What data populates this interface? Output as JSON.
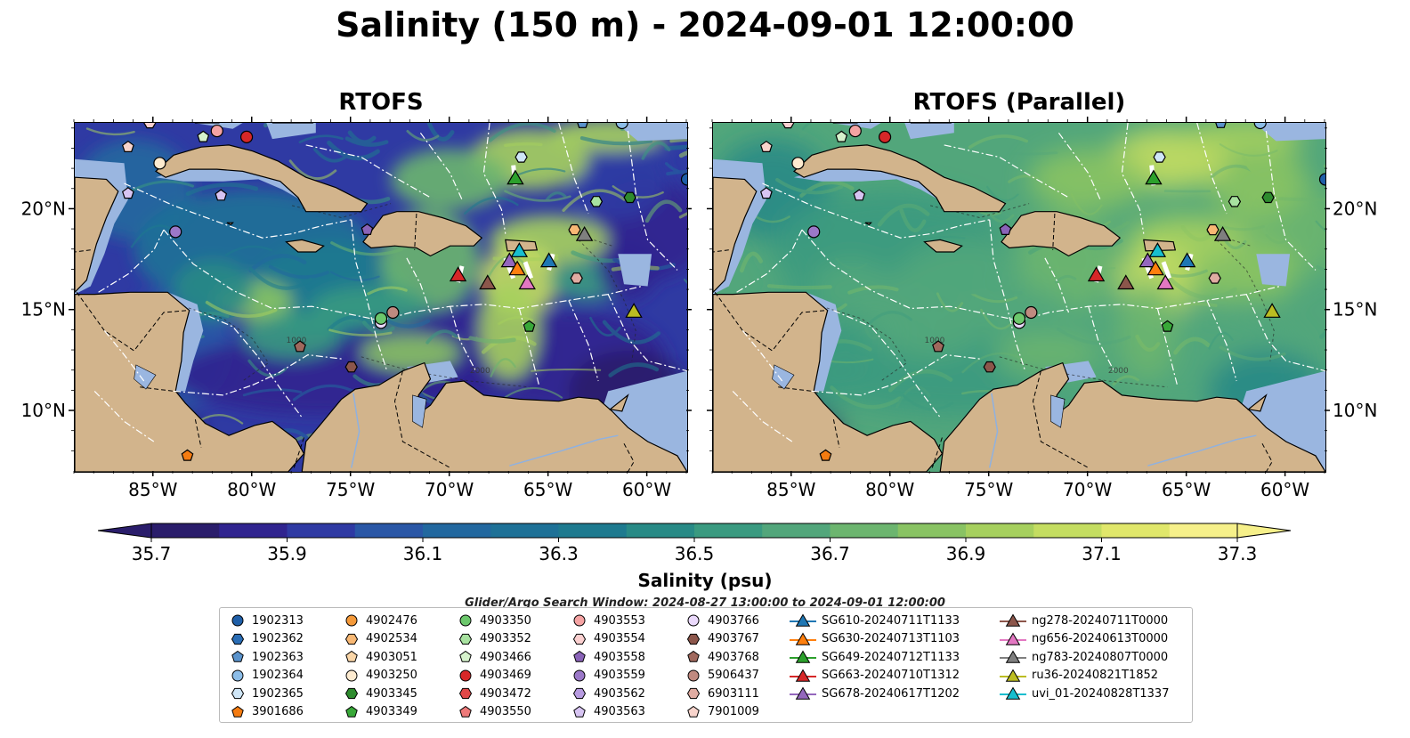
{
  "title": "Salinity (150 m) - 2024-09-01 12:00:00",
  "panels": [
    {
      "title": "RTOFS",
      "variant": "rtofs"
    },
    {
      "title": "RTOFS (Parallel)",
      "variant": "parallel"
    }
  ],
  "axes": {
    "lon_ticks": [
      "85°W",
      "80°W",
      "75°W",
      "70°W",
      "65°W",
      "60°W"
    ],
    "lat_ticks": [
      "20°N",
      "15°N",
      "10°N"
    ],
    "lon_range": [
      -89,
      -58
    ],
    "lat_range": [
      7,
      24.3
    ]
  },
  "contour_labels": [
    "1000",
    "1000",
    "2000"
  ],
  "colorbar": {
    "label": "Salinity (psu)",
    "ticks": [
      "35.7",
      "35.9",
      "36.1",
      "36.3",
      "36.5",
      "36.7",
      "36.9",
      "37.1",
      "37.3"
    ],
    "min": 35.7,
    "max": 37.3,
    "extend": "both",
    "colors": [
      "#2a1d6b",
      "#30248f",
      "#2f3aa3",
      "#2a57a6",
      "#22689f",
      "#1e7197",
      "#1e7a8f",
      "#288a86",
      "#3a9a80",
      "#52a67b",
      "#6cb56f",
      "#89c363",
      "#a6d05e",
      "#c4dd61",
      "#e0e76b",
      "#f6f08a"
    ],
    "land_color": "#d2b48c",
    "shelf_color": "#9ab6e0"
  },
  "search_window": "Glider/Argo Search Window: 2024-08-27 13:00:00 to 2024-09-01 12:00:00",
  "legend": {
    "columns": [
      [
        {
          "label": "1902313",
          "marker": "circle",
          "color": "#1f5fa8"
        },
        {
          "label": "1902362",
          "marker": "hexagon",
          "color": "#2a6db5"
        },
        {
          "label": "1902363",
          "marker": "pentagon",
          "color": "#5a93cc"
        },
        {
          "label": "1902364",
          "marker": "circle",
          "color": "#8cbde8"
        },
        {
          "label": "1902365",
          "marker": "hexagon",
          "color": "#cfe6f7"
        },
        {
          "label": "3901686",
          "marker": "pentagon",
          "color": "#f57c11"
        }
      ],
      [
        {
          "label": "4902476",
          "marker": "circle",
          "color": "#f59a3a"
        },
        {
          "label": "4902534",
          "marker": "hexagon",
          "color": "#f8b874"
        },
        {
          "label": "4903051",
          "marker": "pentagon",
          "color": "#fad6a8"
        },
        {
          "label": "4903250",
          "marker": "circle",
          "color": "#fdebd0"
        },
        {
          "label": "4903345",
          "marker": "hexagon",
          "color": "#2e8b2e"
        },
        {
          "label": "4903349",
          "marker": "pentagon",
          "color": "#38a838"
        }
      ],
      [
        {
          "label": "4903350",
          "marker": "circle",
          "color": "#6cc86c"
        },
        {
          "label": "4903352",
          "marker": "hexagon",
          "color": "#a8e2a0"
        },
        {
          "label": "4903466",
          "marker": "pentagon",
          "color": "#d6f2cc"
        },
        {
          "label": "4903469",
          "marker": "circle",
          "color": "#d62728"
        },
        {
          "label": "4903472",
          "marker": "hexagon",
          "color": "#e04848"
        },
        {
          "label": "4903550",
          "marker": "pentagon",
          "color": "#ee7a7a"
        }
      ],
      [
        {
          "label": "4903553",
          "marker": "circle",
          "color": "#f5a3a3"
        },
        {
          "label": "4903554",
          "marker": "hexagon",
          "color": "#fbd0d0"
        },
        {
          "label": "4903558",
          "marker": "pentagon",
          "color": "#8a63b8"
        },
        {
          "label": "4903559",
          "marker": "circle",
          "color": "#9b78c8"
        },
        {
          "label": "4903562",
          "marker": "hexagon",
          "color": "#b79be0"
        },
        {
          "label": "4903563",
          "marker": "pentagon",
          "color": "#d7c4f2"
        }
      ],
      [
        {
          "label": "4903766",
          "marker": "circle",
          "color": "#ead9fb"
        },
        {
          "label": "4903767",
          "marker": "hexagon",
          "color": "#8c564b"
        },
        {
          "label": "4903768",
          "marker": "pentagon",
          "color": "#a0685d"
        },
        {
          "label": "5906437",
          "marker": "circle",
          "color": "#c08a80"
        },
        {
          "label": "6903111",
          "marker": "hexagon",
          "color": "#e0aca2"
        },
        {
          "label": "7901009",
          "marker": "pentagon",
          "color": "#f8d4cc"
        }
      ],
      [
        {
          "label": "SG610-20240711T1133",
          "marker": "triangle",
          "color": "#1f77b4"
        },
        {
          "label": "SG630-20240713T1103",
          "marker": "triangle",
          "color": "#ff7f0e"
        },
        {
          "label": "SG649-20240712T1133",
          "marker": "triangle",
          "color": "#2ca02c"
        },
        {
          "label": "SG663-20240710T1312",
          "marker": "triangle",
          "color": "#d62728"
        },
        {
          "label": "SG678-20240617T1202",
          "marker": "triangle",
          "color": "#9467bd"
        }
      ],
      [
        {
          "label": "ng278-20240711T0000",
          "marker": "triangle",
          "color": "#8c564b"
        },
        {
          "label": "ng656-20240613T0000",
          "marker": "triangle",
          "color": "#e377c2"
        },
        {
          "label": "ng783-20240807T0000",
          "marker": "triangle",
          "color": "#7f7f7f"
        },
        {
          "label": "ru36-20240821T1852",
          "marker": "triangle",
          "color": "#bcbd22"
        },
        {
          "label": "uvi_01-20240828T1337",
          "marker": "triangle",
          "color": "#17becf"
        }
      ]
    ]
  },
  "observations": [
    {
      "id": "1902363",
      "lon": -63.3,
      "lat": 24.3
    },
    {
      "id": "1902364",
      "lon": -61.3,
      "lat": 24.3
    },
    {
      "id": "1902313",
      "lon": -58.0,
      "lat": 21.5
    },
    {
      "id": "4903554",
      "lon": -85.2,
      "lat": 24.3
    },
    {
      "id": "4903553",
      "lon": -81.8,
      "lat": 23.9
    },
    {
      "id": "4903466",
      "lon": -82.5,
      "lat": 23.6
    },
    {
      "id": "4903469",
      "lon": -80.3,
      "lat": 23.6
    },
    {
      "id": "7901009",
      "lon": -86.3,
      "lat": 23.1
    },
    {
      "id": "4903250",
      "lon": -84.7,
      "lat": 22.3
    },
    {
      "id": "1902365",
      "lon": -66.4,
      "lat": 22.6
    },
    {
      "id": "4903563",
      "lon": -86.3,
      "lat": 20.8
    },
    {
      "id": "4903563",
      "lon": -81.6,
      "lat": 20.7
    },
    {
      "id": "4903352",
      "lon": -62.6,
      "lat": 20.4
    },
    {
      "id": "4903345",
      "lon": -60.9,
      "lat": 20.6
    },
    {
      "id": "4903559",
      "lon": -83.9,
      "lat": 18.9
    },
    {
      "id": "4903558",
      "lon": -74.2,
      "lat": 19.0
    },
    {
      "id": "4902534",
      "lon": -63.7,
      "lat": 19.0
    },
    {
      "id": "5906437",
      "lon": -72.9,
      "lat": 14.9
    },
    {
      "id": "4903766",
      "lon": -73.5,
      "lat": 14.4
    },
    {
      "id": "4903350",
      "lon": -73.5,
      "lat": 14.6
    },
    {
      "id": "4903349",
      "lon": -66.0,
      "lat": 14.2
    },
    {
      "id": "6903111",
      "lon": -63.6,
      "lat": 16.6
    },
    {
      "id": "4903768",
      "lon": -77.6,
      "lat": 13.2
    },
    {
      "id": "4903767",
      "lon": -75.0,
      "lat": 12.2
    },
    {
      "id": "3901686",
      "lon": -83.3,
      "lat": 7.8
    }
  ],
  "gliders": [
    {
      "id": "SG649-20240712T1133",
      "lon": -66.7,
      "lat": 21.4
    },
    {
      "id": "SG663-20240710T1312",
      "lon": -69.6,
      "lat": 16.6
    },
    {
      "id": "ng278-20240711T0000",
      "lon": -68.1,
      "lat": 16.2
    },
    {
      "id": "SG678-20240617T1202",
      "lon": -67.0,
      "lat": 17.3
    },
    {
      "id": "uvi_01-20240828T1337",
      "lon": -66.5,
      "lat": 17.8
    },
    {
      "id": "SG630-20240713T1103",
      "lon": -66.6,
      "lat": 16.9
    },
    {
      "id": "ng656-20240613T0000",
      "lon": -66.1,
      "lat": 16.2
    },
    {
      "id": "SG610-20240711T1133",
      "lon": -65.0,
      "lat": 17.3
    },
    {
      "id": "ng783-20240807T0000",
      "lon": -63.2,
      "lat": 18.6
    },
    {
      "id": "ru36-20240821T1852",
      "lon": -60.7,
      "lat": 14.8
    }
  ]
}
